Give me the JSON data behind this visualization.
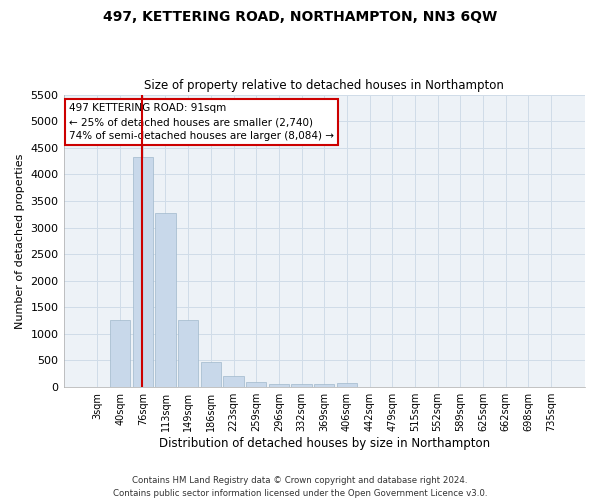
{
  "title": "497, KETTERING ROAD, NORTHAMPTON, NN3 6QW",
  "subtitle": "Size of property relative to detached houses in Northampton",
  "xlabel": "Distribution of detached houses by size in Northampton",
  "ylabel": "Number of detached properties",
  "bar_color": "#c8d8ea",
  "bar_edge_color": "#a0b8cc",
  "grid_color": "#d0dce8",
  "background_color": "#edf2f7",
  "vline_color": "#cc0000",
  "vline_x_idx": 2,
  "annotation_text": "497 KETTERING ROAD: 91sqm\n← 25% of detached houses are smaller (2,740)\n74% of semi-detached houses are larger (8,084) →",
  "annotation_box_color": "white",
  "annotation_box_edge": "#cc0000",
  "categories": [
    "3sqm",
    "40sqm",
    "76sqm",
    "113sqm",
    "149sqm",
    "186sqm",
    "223sqm",
    "259sqm",
    "296sqm",
    "332sqm",
    "369sqm",
    "406sqm",
    "442sqm",
    "479sqm",
    "515sqm",
    "552sqm",
    "589sqm",
    "625sqm",
    "662sqm",
    "698sqm",
    "735sqm"
  ],
  "values": [
    0,
    1270,
    4330,
    3280,
    1270,
    480,
    215,
    95,
    60,
    50,
    50,
    70,
    0,
    0,
    0,
    0,
    0,
    0,
    0,
    0,
    0
  ],
  "ylim": [
    0,
    5500
  ],
  "yticks": [
    0,
    500,
    1000,
    1500,
    2000,
    2500,
    3000,
    3500,
    4000,
    4500,
    5000,
    5500
  ],
  "footer": "Contains HM Land Registry data © Crown copyright and database right 2024.\nContains public sector information licensed under the Open Government Licence v3.0.",
  "figsize": [
    6.0,
    5.0
  ],
  "dpi": 100
}
